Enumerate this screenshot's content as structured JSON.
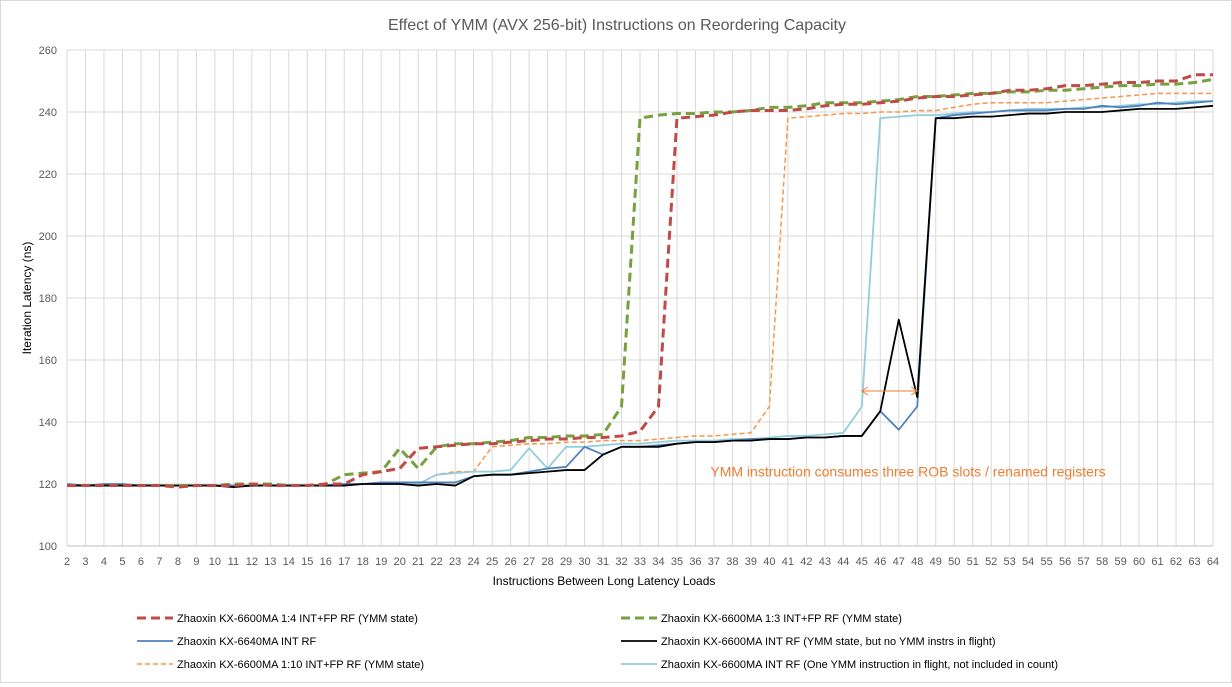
{
  "chart_data": {
    "type": "line",
    "title": "Effect of YMM (AVX 256-bit) Instructions on Reordering Capacity",
    "xlabel": "Instructions Between Long Latency Loads",
    "ylabel": "Iteration Latency (ns)",
    "xlim": [
      2,
      64
    ],
    "ylim": [
      100,
      260
    ],
    "yticks": [
      100,
      120,
      140,
      160,
      180,
      200,
      220,
      240,
      260
    ],
    "x": [
      2,
      3,
      4,
      5,
      6,
      7,
      8,
      9,
      10,
      11,
      12,
      13,
      14,
      15,
      16,
      17,
      18,
      19,
      20,
      21,
      22,
      23,
      24,
      25,
      26,
      27,
      28,
      29,
      30,
      31,
      32,
      33,
      34,
      35,
      36,
      37,
      38,
      39,
      40,
      41,
      42,
      43,
      44,
      45,
      46,
      47,
      48,
      49,
      50,
      51,
      52,
      53,
      54,
      55,
      56,
      57,
      58,
      59,
      60,
      61,
      62,
      63,
      64
    ],
    "grid": true,
    "legend_position": "bottom",
    "annotation": {
      "text": "YMM instruction consumes three ROB slots / renamed registers",
      "arrow_from_x": 45,
      "arrow_to_x": 48,
      "arrow_y": 150,
      "text_anchor_x": 47.5,
      "text_anchor_y": 124,
      "color": "#ed7d31"
    },
    "series": [
      {
        "name": "Zhaoxin KX-6600MA 1:4 INT+FP RF (YMM state)",
        "color": "#be4b48",
        "dash": "long",
        "width": 3,
        "values": [
          119.5,
          119.5,
          119.5,
          119.5,
          119.5,
          119.5,
          119,
          119.5,
          119.5,
          119.5,
          120,
          119.5,
          119.5,
          119.5,
          120,
          120,
          123,
          124,
          125,
          131.5,
          132,
          132.5,
          133,
          133,
          133.5,
          134,
          134.5,
          134.5,
          135,
          135,
          135.5,
          137,
          145,
          238,
          238.5,
          239,
          240,
          240.5,
          240.5,
          240.5,
          241,
          242,
          242.5,
          242.5,
          243,
          243.5,
          244.5,
          245,
          245,
          245.5,
          246,
          247,
          247,
          247.5,
          248.5,
          248.5,
          249,
          249.5,
          249.5,
          250,
          250,
          252,
          252
        ]
      },
      {
        "name": "Zhaoxin KX-6600MA 1:3 INT+FP RF (YMM state)",
        "color": "#77a03e",
        "dash": "long",
        "width": 3,
        "values": [
          119.5,
          119.5,
          119.5,
          119.5,
          119.5,
          119.5,
          119.5,
          119.5,
          119.5,
          120,
          120,
          120,
          119.5,
          119.5,
          120,
          123,
          123.5,
          124,
          131.5,
          125,
          132,
          133,
          133,
          133.5,
          134,
          135,
          135,
          135.5,
          135.5,
          136,
          145,
          238,
          239,
          239.5,
          239.5,
          240,
          240,
          240.5,
          241.5,
          241.5,
          242,
          243,
          243,
          243,
          243.5,
          244,
          245,
          245,
          245.5,
          246,
          246,
          246.5,
          246.5,
          247,
          247,
          247.5,
          248,
          248.5,
          248.5,
          249,
          249,
          249.5,
          250.5
        ]
      },
      {
        "name": "Zhaoxin KX-6640MA INT RF",
        "color": "#4f81bd",
        "dash": "solid",
        "width": 1.8,
        "values": [
          120,
          119.5,
          120,
          120,
          119.5,
          119.5,
          119.5,
          119.5,
          119.5,
          119.5,
          119.5,
          119.5,
          119.5,
          119.5,
          119.5,
          120,
          120,
          120.5,
          120.5,
          120.5,
          120.5,
          120.5,
          122.5,
          123,
          123,
          124,
          125,
          125.5,
          132,
          129.5,
          132,
          132,
          132.5,
          133,
          133.5,
          133.5,
          134,
          134.5,
          134.5,
          134.5,
          135,
          135,
          135.5,
          135.5,
          143.5,
          137.5,
          145,
          238,
          239,
          239.5,
          240,
          240.5,
          240.5,
          240.5,
          241,
          241,
          242,
          241.5,
          242,
          243,
          242.5,
          243,
          243.5
        ]
      },
      {
        "name": "Zhaoxin KX-6600MA INT RF (YMM state, but no YMM instrs in flight)",
        "color": "#000000",
        "dash": "solid",
        "width": 1.8,
        "values": [
          119.5,
          119.5,
          119.5,
          119.5,
          119.5,
          119.5,
          119.5,
          119.5,
          119.5,
          119,
          119.5,
          119.5,
          119.5,
          119.5,
          119.5,
          119.5,
          120,
          120,
          120,
          119.5,
          120,
          119.5,
          122.5,
          123,
          123,
          123.5,
          124,
          124.5,
          124.5,
          129.5,
          132,
          132,
          132,
          133,
          133.5,
          133.5,
          134,
          134,
          134.5,
          134.5,
          135,
          135,
          135.5,
          135.5,
          143.5,
          173,
          148,
          238,
          238,
          238.5,
          238.5,
          239,
          239.5,
          239.5,
          240,
          240,
          240,
          240.5,
          241,
          241,
          241,
          241.5,
          242
        ]
      },
      {
        "name": "Zhaoxin KX-6600MA 1:10 INT+FP RF (YMM state)",
        "color": "#f79646",
        "dash": "short",
        "width": 1.5,
        "values": [
          119.5,
          119.5,
          119.5,
          119.5,
          119.5,
          119.5,
          119.5,
          119.5,
          119.5,
          119.5,
          119.5,
          119.5,
          119.5,
          119.5,
          119.5,
          120,
          120,
          120,
          120,
          120,
          123,
          124,
          124,
          132,
          132.5,
          133,
          133,
          133.5,
          133.5,
          134,
          134,
          134,
          134.5,
          135,
          135.5,
          135.5,
          136,
          136.5,
          145,
          238,
          238.5,
          239,
          239.5,
          239.5,
          240,
          240,
          240.5,
          240.5,
          241.5,
          242.5,
          243,
          243,
          243,
          243,
          243.5,
          244,
          244.5,
          245,
          245.5,
          246,
          246,
          246,
          246
        ]
      },
      {
        "name": "Zhaoxin KX-6600MA INT RF (One YMM instruction in flight, not included in count)",
        "color": "#93cddd",
        "dash": "solid",
        "width": 1.8,
        "values": [
          119.5,
          119.5,
          119.5,
          119.5,
          119.5,
          119.5,
          119.5,
          119.5,
          119.5,
          119.5,
          119.5,
          119.5,
          119.5,
          119.5,
          119.5,
          120,
          120,
          120,
          120,
          120,
          123,
          123.5,
          124,
          124,
          124.5,
          131.5,
          125,
          132,
          132,
          132.5,
          133,
          133,
          133.5,
          134,
          134,
          134,
          134.5,
          134.5,
          135,
          135.5,
          135.5,
          136,
          136.5,
          145,
          238,
          238.5,
          239,
          239,
          239.5,
          240,
          240,
          240.5,
          241,
          241,
          241,
          241.5,
          241.5,
          242,
          242.5,
          242.5,
          243,
          243.5,
          243.5
        ]
      }
    ]
  }
}
